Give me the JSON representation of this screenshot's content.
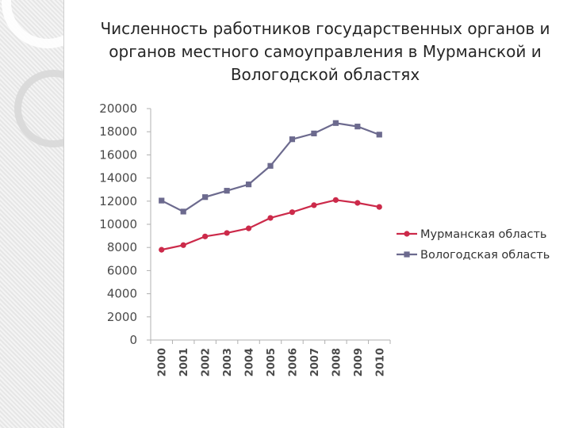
{
  "title_lines": [
    "Численность работников государственных органов и",
    "органов местного самоуправления в Мурманской и",
    "Вологодской областях"
  ],
  "colors": {
    "murmansk": "#cc2a4a",
    "vologda": "#6c6a8e",
    "axis": "#b0b0b0",
    "sidebar_ring": "#d8d8d8"
  },
  "chart_data": {
    "type": "line",
    "title": "Численность работников государственных органов и органов местного самоуправления в Мурманской и Вологодской областях",
    "xlabel": "",
    "ylabel": "",
    "categories": [
      "2000",
      "2001",
      "2002",
      "2003",
      "2004",
      "2005",
      "2006",
      "2007",
      "2008",
      "2009",
      "2010"
    ],
    "ylim": [
      0,
      20000
    ],
    "y_ticks": [
      0,
      2000,
      4000,
      6000,
      8000,
      10000,
      12000,
      14000,
      16000,
      18000,
      20000
    ],
    "grid": false,
    "legend": "right",
    "series": [
      {
        "name": "Мурманская область",
        "color": "#cc2a4a",
        "marker": "circle",
        "values": [
          7800,
          8200,
          8950,
          9250,
          9650,
          10550,
          11050,
          11650,
          12100,
          11850,
          11500
        ]
      },
      {
        "name": "Вологодская область",
        "color": "#6c6a8e",
        "marker": "square",
        "values": [
          12050,
          11100,
          12350,
          12900,
          13450,
          15050,
          17350,
          17850,
          18750,
          18450,
          17750
        ]
      }
    ]
  }
}
